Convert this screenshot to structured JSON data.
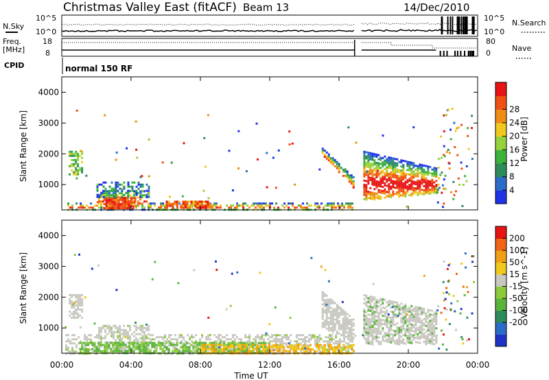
{
  "header": {
    "title": "Christmas Valley East (fitACF)",
    "beam": "Beam 13",
    "date": "14/Dec/2010"
  },
  "top_panels": {
    "nsky_label": "N.Sky",
    "nsky_ticks": [
      "10^5",
      "10^0"
    ],
    "nsearch_ticks": [
      "10^5",
      "10^0"
    ],
    "nsearch_label": "N.Search",
    "freq_label": "Freq.",
    "freq_unit": "[MHz]",
    "freq_ticks": [
      "18",
      "8"
    ],
    "nave_ticks": [
      "80",
      "0"
    ],
    "nave_label": "Nave",
    "cpid_label": "CPID",
    "cpid_text": "normal 150 RF"
  },
  "chart_data": [
    {
      "type": "heatmap",
      "name": "power",
      "ylabel": "Slant Range [km]",
      "ylim": [
        180,
        4500
      ],
      "yticks": [
        "1000",
        "2000",
        "3000",
        "4000"
      ],
      "colorbar_label": "Power [dB]",
      "colorbar_ticks": [
        "4",
        "8",
        "12",
        "16",
        "20",
        "24",
        "28"
      ],
      "colors": [
        "#1e32e6",
        "#2c6cc8",
        "#2e8c5a",
        "#3cb43c",
        "#96d23c",
        "#f0c81e",
        "#f08c14",
        "#f05014",
        "#e61414"
      ]
    },
    {
      "type": "heatmap",
      "name": "velocity",
      "ylabel": "Slant Range [km]",
      "ylim": [
        180,
        4500
      ],
      "yticks": [
        "1000",
        "2000",
        "3000",
        "4000"
      ],
      "colorbar_label": "Velocity [m s^-1]",
      "colorbar_ticks": [
        "200",
        "100",
        "50",
        "15",
        "-15",
        "-50",
        "-100",
        "-200"
      ],
      "colors": [
        "#1e32c8",
        "#2c6cc8",
        "#2e8c5a",
        "#5ab43c",
        "#8ccc3c",
        "#c8c8c0",
        "#f0c81e",
        "#f0a014",
        "#f06414",
        "#e61414"
      ]
    }
  ],
  "x_axis": {
    "ticks": [
      "00:00",
      "04:00",
      "08:00",
      "12:00",
      "16:00",
      "20:00",
      "00:00"
    ],
    "label": "Time UT"
  }
}
